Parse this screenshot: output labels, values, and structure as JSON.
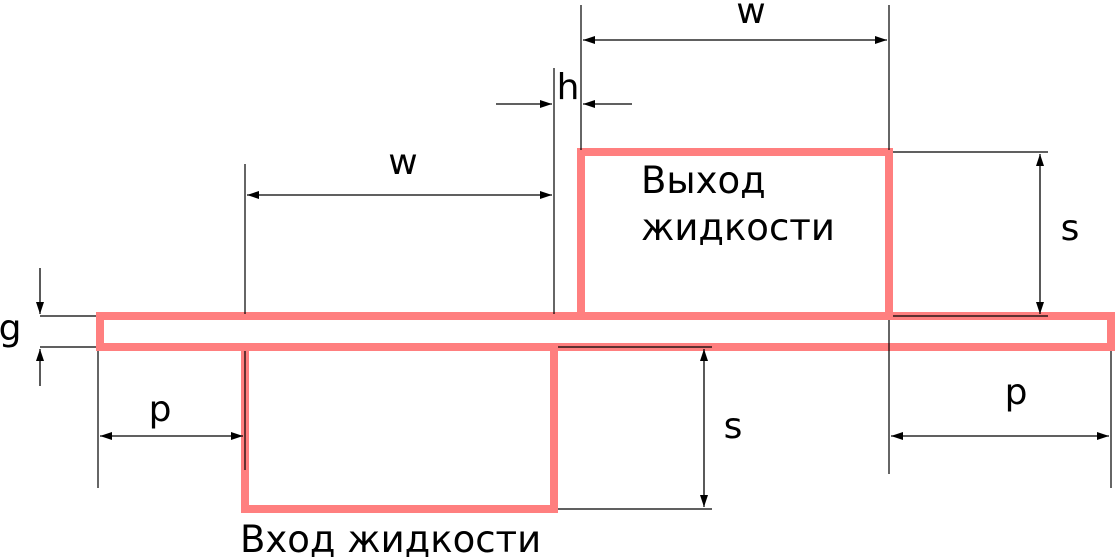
{
  "colors": {
    "channel_stroke": "#ff7f7f",
    "line": "#000000",
    "background": "#ffffff"
  },
  "labels": {
    "w_top": "w",
    "w_mid": "w",
    "h": "h",
    "s_right": "s",
    "s_bottom": "s",
    "g": "g",
    "p_left": "p",
    "p_right": "p",
    "outlet_line1": "Выход",
    "outlet_line2": "жидкости",
    "inlet": "Вход жидкости"
  }
}
